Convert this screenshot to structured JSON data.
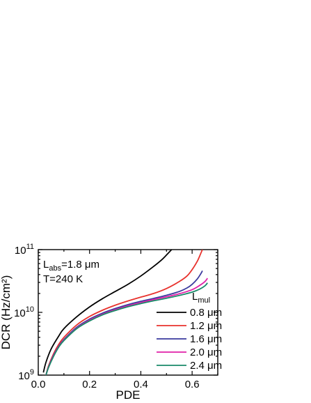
{
  "chart_data": {
    "type": "line",
    "xlabel": "PDE",
    "ylabel": "DCR (Hz/cm²)",
    "xlim": [
      0,
      0.7
    ],
    "ylim": [
      1000000000.0,
      100000000000.0
    ],
    "y_scale": "log",
    "x_ticks": [
      {
        "value": 0.0,
        "label": "0.0"
      },
      {
        "value": 0.2,
        "label": "0.2"
      },
      {
        "value": 0.4,
        "label": "0.4"
      },
      {
        "value": 0.6,
        "label": "0.6"
      }
    ],
    "y_ticks": [
      {
        "value": 1000000000.0,
        "base": "10",
        "exp": "9"
      },
      {
        "value": 10000000000.0,
        "base": "10",
        "exp": "10"
      },
      {
        "value": 100000000000.0,
        "base": "10",
        "exp": "11"
      }
    ],
    "annotations": {
      "l_abs": {
        "main": "L",
        "sub": "abs",
        "rest": "=1.8 μm"
      },
      "temperature": "T=240 K"
    },
    "legend": {
      "title_main": "L",
      "title_sub": "mul",
      "position": "bottom-right"
    },
    "series": [
      {
        "name": "0.8 μm",
        "color": "#000000",
        "points": [
          [
            0.02,
            1100000000.0
          ],
          [
            0.03,
            1600000000.0
          ],
          [
            0.05,
            2600000000.0
          ],
          [
            0.08,
            4200000000.0
          ],
          [
            0.1,
            5500000000.0
          ],
          [
            0.15,
            8500000000.0
          ],
          [
            0.2,
            12200000000.0
          ],
          [
            0.25,
            16500000000.0
          ],
          [
            0.3,
            21500000000.0
          ],
          [
            0.35,
            28000000000.0
          ],
          [
            0.4,
            38000000000.0
          ],
          [
            0.45,
            54000000000.0
          ],
          [
            0.48,
            68000000000.0
          ],
          [
            0.5,
            82000000000.0
          ],
          [
            0.52,
            100000000000.0
          ]
        ]
      },
      {
        "name": "1.2 μm",
        "color": "#e8322d",
        "points": [
          [
            0.03,
            1000000000.0
          ],
          [
            0.04,
            1400000000.0
          ],
          [
            0.06,
            2200000000.0
          ],
          [
            0.08,
            3100000000.0
          ],
          [
            0.1,
            4000000000.0
          ],
          [
            0.15,
            6300000000.0
          ],
          [
            0.2,
            8600000000.0
          ],
          [
            0.25,
            10800000000.0
          ],
          [
            0.3,
            13000000000.0
          ],
          [
            0.35,
            15200000000.0
          ],
          [
            0.4,
            17500000000.0
          ],
          [
            0.45,
            20000000000.0
          ],
          [
            0.5,
            24000000000.0
          ],
          [
            0.55,
            31000000000.0
          ],
          [
            0.58,
            38000000000.0
          ],
          [
            0.6,
            48000000000.0
          ],
          [
            0.62,
            65000000000.0
          ],
          [
            0.63,
            80000000000.0
          ],
          [
            0.64,
            100000000000.0
          ]
        ]
      },
      {
        "name": "1.6 μm",
        "color": "#3a3a9e",
        "points": [
          [
            0.03,
            1000000000.0
          ],
          [
            0.04,
            1350000000.0
          ],
          [
            0.06,
            2100000000.0
          ],
          [
            0.08,
            2900000000.0
          ],
          [
            0.1,
            3700000000.0
          ],
          [
            0.15,
            5800000000.0
          ],
          [
            0.2,
            7800000000.0
          ],
          [
            0.25,
            9700000000.0
          ],
          [
            0.3,
            11500000000.0
          ],
          [
            0.35,
            13300000000.0
          ],
          [
            0.4,
            15000000000.0
          ],
          [
            0.45,
            16700000000.0
          ],
          [
            0.5,
            18700000000.0
          ],
          [
            0.55,
            21500000000.0
          ],
          [
            0.58,
            24500000000.0
          ],
          [
            0.6,
            28000000000.0
          ],
          [
            0.62,
            34000000000.0
          ],
          [
            0.635,
            42000000000.0
          ],
          [
            0.64,
            46000000000.0
          ]
        ]
      },
      {
        "name": "2.0 μm",
        "color": "#e020a8",
        "points": [
          [
            0.03,
            1000000000.0
          ],
          [
            0.04,
            1330000000.0
          ],
          [
            0.06,
            2050000000.0
          ],
          [
            0.08,
            2850000000.0
          ],
          [
            0.1,
            3600000000.0
          ],
          [
            0.15,
            5600000000.0
          ],
          [
            0.2,
            7500000000.0
          ],
          [
            0.25,
            9300000000.0
          ],
          [
            0.3,
            11000000000.0
          ],
          [
            0.35,
            12700000000.0
          ],
          [
            0.4,
            14300000000.0
          ],
          [
            0.45,
            16000000000.0
          ],
          [
            0.5,
            17700000000.0
          ],
          [
            0.55,
            19800000000.0
          ],
          [
            0.6,
            23000000000.0
          ],
          [
            0.63,
            27000000000.0
          ],
          [
            0.65,
            31000000000.0
          ],
          [
            0.66,
            35000000000.0
          ]
        ]
      },
      {
        "name": "2.4 μm",
        "color": "#1a8a6a",
        "points": [
          [
            0.03,
            1000000000.0
          ],
          [
            0.04,
            1320000000.0
          ],
          [
            0.06,
            2000000000.0
          ],
          [
            0.08,
            2800000000.0
          ],
          [
            0.1,
            3550000000.0
          ],
          [
            0.15,
            5500000000.0
          ],
          [
            0.2,
            7300000000.0
          ],
          [
            0.25,
            9100000000.0
          ],
          [
            0.3,
            10700000000.0
          ],
          [
            0.35,
            12300000000.0
          ],
          [
            0.4,
            13800000000.0
          ],
          [
            0.45,
            15300000000.0
          ],
          [
            0.5,
            16800000000.0
          ],
          [
            0.55,
            18600000000.0
          ],
          [
            0.6,
            21000000000.0
          ],
          [
            0.63,
            23500000000.0
          ],
          [
            0.65,
            26500000000.0
          ],
          [
            0.66,
            29500000000.0
          ]
        ]
      }
    ]
  }
}
